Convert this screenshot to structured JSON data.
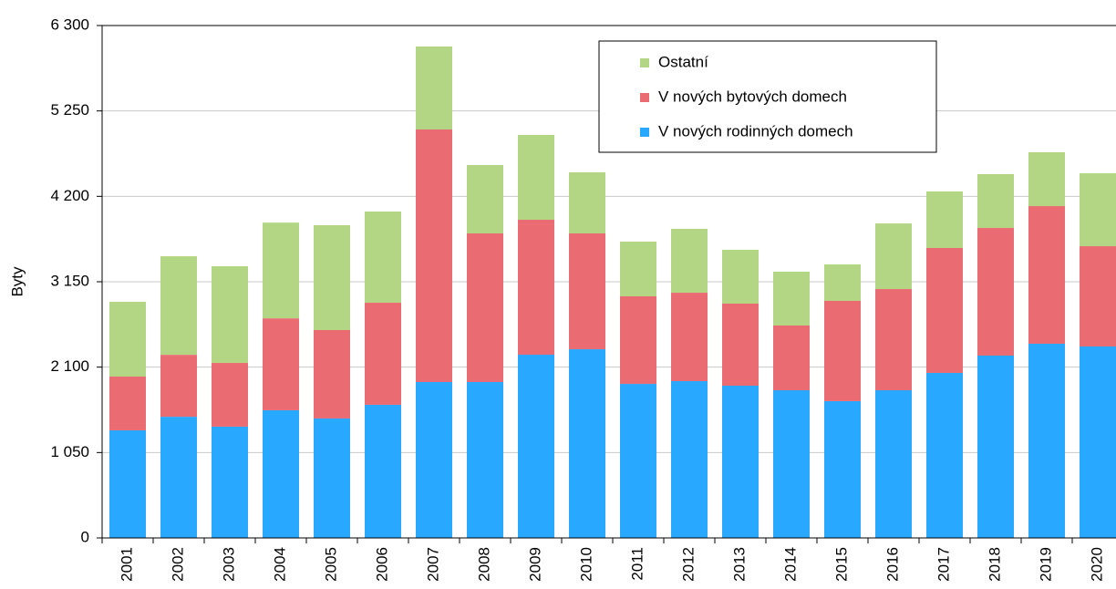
{
  "chart_data": {
    "type": "stacked_bar",
    "y_label": "Byty",
    "categories": [
      "2001",
      "2002",
      "2003",
      "2004",
      "2005",
      "2006",
      "2007",
      "2008",
      "2009",
      "2010",
      "2011",
      "2012",
      "2013",
      "2014",
      "2015",
      "2016",
      "2017",
      "2018",
      "2019",
      "2020"
    ],
    "series": [
      {
        "name": "V nových rodinných domech",
        "color": "#29a8ff",
        "values": [
          1323,
          1490,
          1368,
          1570,
          1469,
          1637,
          1917,
          1917,
          2253,
          2320,
          1894,
          1928,
          1872,
          1816,
          1682,
          1816,
          2029,
          2242,
          2388,
          2354
        ]
      },
      {
        "name": "V nových bytových domech",
        "color": "#eb6b73",
        "values": [
          661,
          762,
          784,
          1130,
          1087,
          1255,
          3105,
          1827,
          1659,
          1424,
          1077,
          1087,
          1009,
          796,
          1233,
          1244,
          1536,
          1569,
          1692,
          1233
        ]
      },
      {
        "name": "Ostatní",
        "color": "#b2d683",
        "values": [
          919,
          1211,
          1189,
          1177,
          1289,
          1121,
          1020,
          841,
          1043,
          751,
          672,
          785,
          661,
          661,
          448,
          807,
          695,
          662,
          662,
          897
        ]
      }
    ],
    "ylim": [
      0,
      6300
    ],
    "yticks": [
      0,
      {
        "value": 1050,
        "label": "1 050"
      },
      {
        "value": 2100,
        "label": "2 100"
      },
      {
        "value": 3150,
        "label": "3 150"
      },
      {
        "value": 4200,
        "label": "4 200"
      },
      {
        "value": 5250,
        "label": "5 250"
      },
      {
        "value": 6300,
        "label": "6 300"
      }
    ],
    "grid": true,
    "legend": "top-right"
  }
}
